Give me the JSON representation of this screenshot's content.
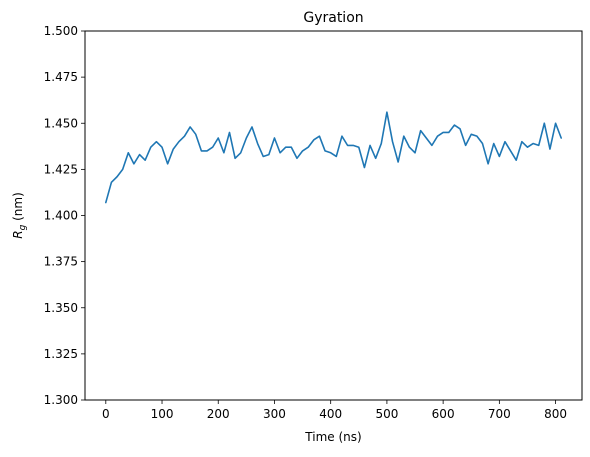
{
  "chart_data": {
    "type": "line",
    "title": "Gyration",
    "xlabel": "Time (ns)",
    "ylabel_main": "R",
    "ylabel_sub": "g",
    "ylabel_unit": " (nm)",
    "xlim": [
      -37,
      847
    ],
    "ylim": [
      1.3,
      1.5
    ],
    "xticks": [
      0,
      100,
      200,
      300,
      400,
      500,
      600,
      700,
      800
    ],
    "xtick_labels": [
      "0",
      "100",
      "200",
      "300",
      "400",
      "500",
      "600",
      "700",
      "800"
    ],
    "yticks": [
      1.3,
      1.325,
      1.35,
      1.375,
      1.4,
      1.425,
      1.45,
      1.475,
      1.5
    ],
    "ytick_labels": [
      "1.300",
      "1.325",
      "1.350",
      "1.375",
      "1.400",
      "1.425",
      "1.450",
      "1.475",
      "1.500"
    ],
    "grid": false,
    "series": [
      {
        "color": "#1f77b4",
        "x": [
          0,
          10,
          20,
          30,
          40,
          50,
          60,
          70,
          80,
          90,
          100,
          110,
          120,
          130,
          140,
          150,
          160,
          170,
          180,
          190,
          200,
          210,
          220,
          230,
          240,
          250,
          260,
          270,
          280,
          290,
          300,
          310,
          320,
          330,
          340,
          350,
          360,
          370,
          380,
          390,
          400,
          410,
          420,
          430,
          440,
          450,
          460,
          470,
          480,
          490,
          500,
          510,
          520,
          530,
          540,
          550,
          560,
          570,
          580,
          590,
          600,
          610,
          620,
          630,
          640,
          650,
          660,
          670,
          680,
          690,
          700,
          710,
          720,
          730,
          740,
          750,
          760,
          770,
          780,
          790,
          800,
          810
        ],
        "y": [
          1.407,
          1.418,
          1.421,
          1.425,
          1.434,
          1.428,
          1.433,
          1.43,
          1.437,
          1.44,
          1.437,
          1.428,
          1.436,
          1.44,
          1.443,
          1.448,
          1.444,
          1.435,
          1.435,
          1.437,
          1.442,
          1.434,
          1.445,
          1.431,
          1.434,
          1.442,
          1.448,
          1.439,
          1.432,
          1.433,
          1.442,
          1.434,
          1.437,
          1.437,
          1.431,
          1.435,
          1.437,
          1.441,
          1.443,
          1.435,
          1.434,
          1.432,
          1.443,
          1.438,
          1.438,
          1.437,
          1.426,
          1.438,
          1.431,
          1.439,
          1.456,
          1.44,
          1.429,
          1.443,
          1.437,
          1.434,
          1.446,
          1.442,
          1.438,
          1.443,
          1.445,
          1.445,
          1.449,
          1.447,
          1.438,
          1.444,
          1.443,
          1.439,
          1.428,
          1.439,
          1.432,
          1.44,
          1.435,
          1.43,
          1.44,
          1.437,
          1.439,
          1.438,
          1.45,
          1.436,
          1.45,
          1.442
        ]
      }
    ]
  }
}
